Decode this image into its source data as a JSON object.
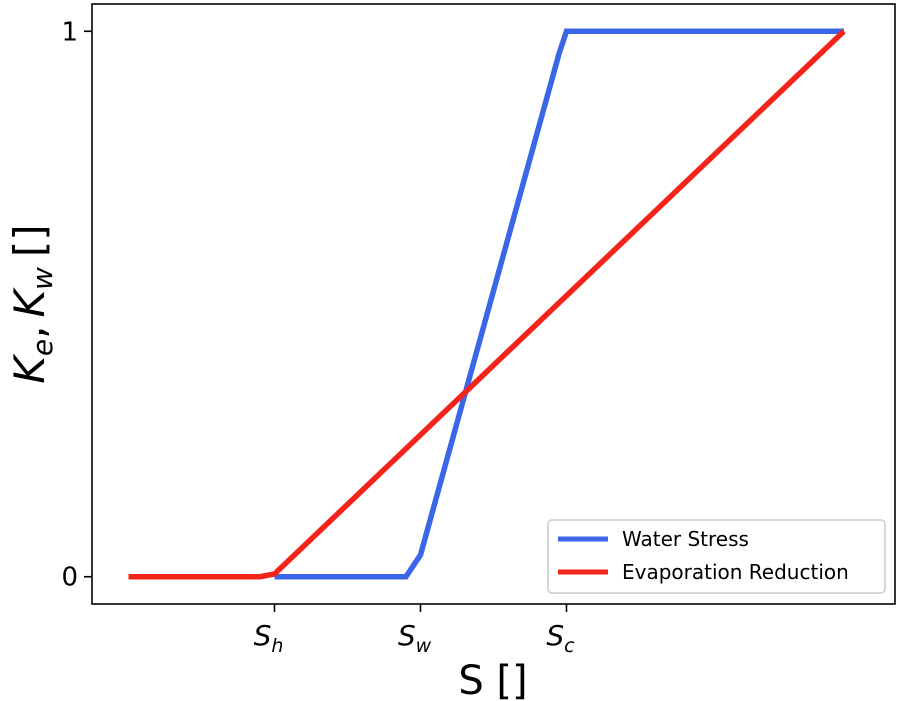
{
  "chart_data": {
    "type": "line",
    "title": "",
    "xlabel": "S []",
    "ylabel": {
      "k1": "K",
      "k1_sub": "e",
      "sep": ",",
      "k2": "K",
      "k2_sub": "w",
      "unit": "[]"
    },
    "x_ticks": [
      {
        "x": 0.2,
        "base": "S",
        "sub": "h"
      },
      {
        "x": 0.4,
        "base": "S",
        "sub": "w"
      },
      {
        "x": 0.6,
        "base": "S",
        "sub": "c"
      }
    ],
    "y_ticks": [
      {
        "y": 0,
        "label": "0"
      },
      {
        "y": 1,
        "label": "1"
      }
    ],
    "xlim": [
      -0.05,
      1.05
    ],
    "ylim": [
      -0.05,
      1.05
    ],
    "grid": false,
    "legend_position": "lower-right",
    "series": [
      {
        "name": "Water Stress",
        "color": "#3b66e8",
        "x": [
          0.2,
          0.38,
          0.4,
          0.59,
          0.6,
          0.98
        ],
        "y": [
          0,
          0,
          0.04,
          0.96,
          1,
          1
        ]
      },
      {
        "name": "Evaporation Reduction",
        "color": "#f5241a",
        "x": [
          0,
          0.18,
          0.2,
          0.98
        ],
        "y": [
          0,
          0,
          0.005,
          1
        ]
      }
    ]
  }
}
